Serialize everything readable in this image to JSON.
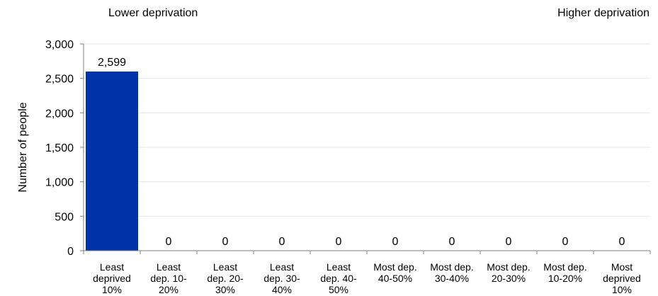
{
  "header": {
    "left_note": "Lower deprivation",
    "right_note": "Higher deprivation"
  },
  "chart_data": {
    "type": "bar",
    "title": "",
    "xlabel": "",
    "ylabel": "Number of people",
    "categories": [
      [
        "Least",
        "deprived",
        "10%"
      ],
      [
        "Least",
        "dep. 10-",
        "20%"
      ],
      [
        "Least",
        "dep. 20-",
        "30%"
      ],
      [
        "Least",
        "dep. 30-",
        "40%"
      ],
      [
        "Least",
        "dep. 40-",
        "50%"
      ],
      [
        "Most dep.",
        "40-50%"
      ],
      [
        "Most dep.",
        "30-40%"
      ],
      [
        "Most dep.",
        "20-30%"
      ],
      [
        "Most dep.",
        "10-20%"
      ],
      [
        "Most",
        "deprived",
        "10%"
      ]
    ],
    "values": [
      2599,
      0,
      0,
      0,
      0,
      0,
      0,
      0,
      0,
      0
    ],
    "data_labels": [
      "2,599",
      "0",
      "0",
      "0",
      "0",
      "0",
      "0",
      "0",
      "0",
      "0"
    ],
    "yticks": [
      0,
      500,
      1000,
      1500,
      2000,
      2500,
      3000
    ],
    "ytick_labels": [
      "0",
      "500",
      "1,000",
      "1,500",
      "2,000",
      "2,500",
      "3,000"
    ],
    "ylim": [
      0,
      3000
    ],
    "grid": true,
    "legend": "none",
    "bar_color": "#0033aa",
    "grid_color": "#e6e6e6",
    "axis_color": "#7f7f7f"
  }
}
